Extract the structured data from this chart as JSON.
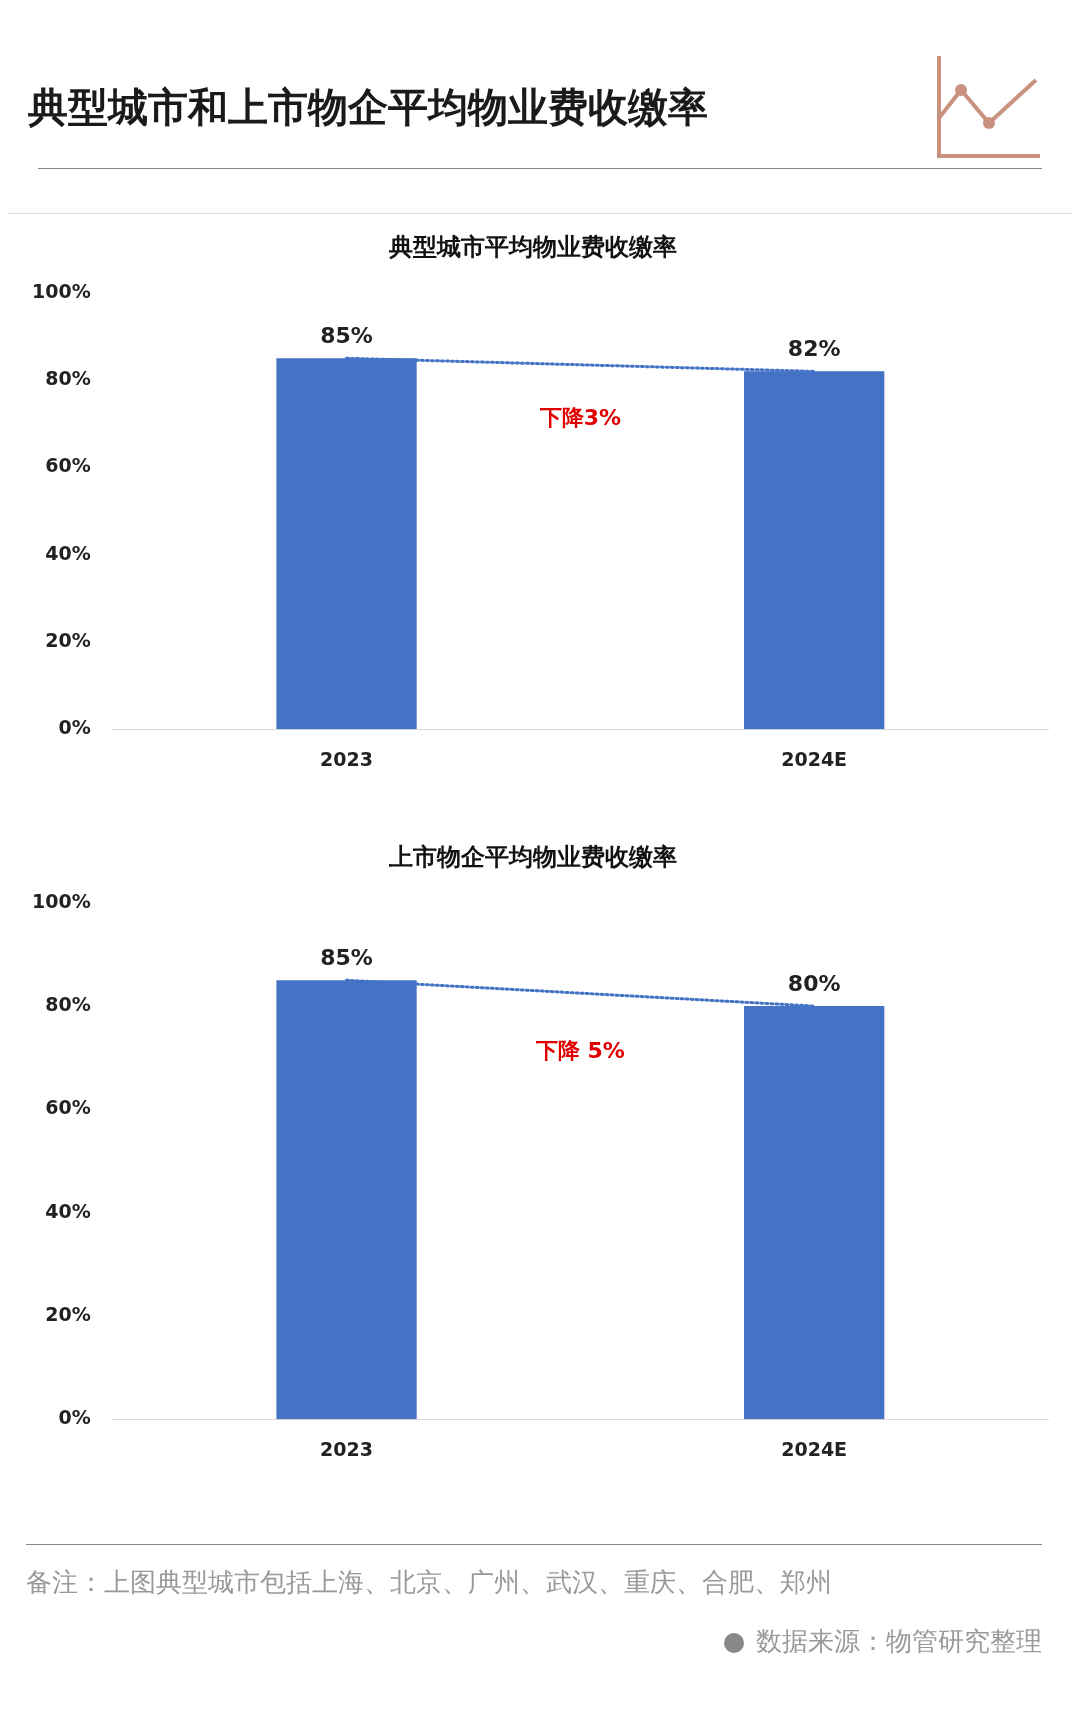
{
  "chart_data": [
    {
      "type": "bar",
      "title": "典型城市和上市物企平均物业费收缴率",
      "subtitle": "典型城市平均物业费收缴率",
      "categories": [
        "2023",
        "2024E"
      ],
      "series": [
        {
          "color": "#4472c4",
          "values": [
            85,
            82
          ],
          "value_labels": [
            "85%",
            "82%"
          ]
        },
        {
          "type": "line",
          "color": "#4472c4",
          "values": [
            85,
            82
          ],
          "line_style": "dotted",
          "marker": "none"
        }
      ],
      "ylim": [
        0,
        100
      ],
      "yticks": [
        {
          "value": 0,
          "label": "0%"
        },
        {
          "value": 20,
          "label": "20%"
        },
        {
          "value": 40,
          "label": "40%"
        },
        {
          "value": 60,
          "label": "60%"
        },
        {
          "value": 80,
          "label": "80%"
        },
        {
          "value": 100,
          "label": "100%"
        }
      ],
      "annotations": [
        "下降3%"
      ],
      "legend": false,
      "grid": false
    },
    {
      "type": "bar",
      "title": "上市物企平均物业费收缴率",
      "categories": [
        "2023",
        "2024E"
      ],
      "series": [
        {
          "color": "#4472c4",
          "values": [
            85,
            80
          ],
          "value_labels": [
            "85%",
            "80%"
          ]
        },
        {
          "type": "line",
          "color": "#4472c4",
          "values": [
            85,
            80
          ],
          "line_style": "dotted",
          "marker": "none"
        }
      ],
      "ylim": [
        0,
        100
      ],
      "yticks": [
        {
          "value": 0,
          "label": "0%"
        },
        {
          "value": 20,
          "label": "20%"
        },
        {
          "value": 40,
          "label": "40%"
        },
        {
          "value": 60,
          "label": "60%"
        },
        {
          "value": 80,
          "label": "80%"
        },
        {
          "value": 100,
          "label": "100%"
        }
      ],
      "annotations": [
        "下降 5%",
        "备注：上图典型城市包括上海、北京、广州、武汉、重庆、合肥、郑州",
        "数据来源：物管研究整理"
      ],
      "legend": false,
      "grid": false
    }
  ]
}
